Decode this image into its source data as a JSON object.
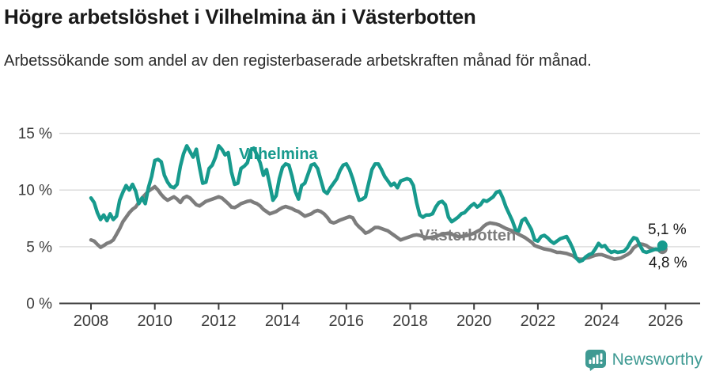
{
  "header": {
    "title": "Högre arbetslöshet i Vilhelmina än i Västerbotten",
    "subtitle": "Arbetssökande som andel av den registerbaserade arbetskraften månad för månad."
  },
  "colors": {
    "vilhelmina": "#179a8d",
    "vasterbotten": "#7d7d7d",
    "grid": "#d8d8d8",
    "axis": "#3c3c3c",
    "brand_teal": "#3f9a93"
  },
  "chart_data": {
    "type": "line",
    "title": "Högre arbetslöshet i Vilhelmina än i Västerbotten",
    "xlabel": "",
    "ylabel": "Arbetssökande som andel av den registerbaserade arbetskraften",
    "x_start": 2008.0,
    "x_step": 0.1,
    "xlim": [
      2007.0,
      2027.1
    ],
    "ylim": [
      0,
      15
    ],
    "grid": "horizontal",
    "x_ticks": [
      2008,
      2010,
      2012,
      2014,
      2016,
      2018,
      2020,
      2022,
      2024,
      2026
    ],
    "y_ticks": [
      {
        "value": 0,
        "label": "0 %"
      },
      {
        "value": 5,
        "label": "5 %"
      },
      {
        "value": 10,
        "label": "10 %"
      },
      {
        "value": 15,
        "label": "15 %"
      }
    ],
    "series": [
      {
        "name": "Västerbotten",
        "color": "#7d7d7d",
        "end_label": "4,8 %",
        "end_value": 4.8,
        "values": [
          5.6,
          5.5,
          5.2,
          4.95,
          5.1,
          5.3,
          5.4,
          5.6,
          6.1,
          6.6,
          7.2,
          7.6,
          8.0,
          8.3,
          8.5,
          8.9,
          9.3,
          9.6,
          9.9,
          10.1,
          10.3,
          10.0,
          9.6,
          9.3,
          9.1,
          9.25,
          9.4,
          9.2,
          8.9,
          9.3,
          9.45,
          9.3,
          9.0,
          8.7,
          8.6,
          8.8,
          9.0,
          9.1,
          9.2,
          9.3,
          9.4,
          9.3,
          9.05,
          8.8,
          8.5,
          8.45,
          8.6,
          8.8,
          8.9,
          9.0,
          9.05,
          8.9,
          8.8,
          8.6,
          8.3,
          8.1,
          7.9,
          8.0,
          8.1,
          8.3,
          8.45,
          8.55,
          8.45,
          8.35,
          8.2,
          8.1,
          7.9,
          7.7,
          7.8,
          7.9,
          8.1,
          8.2,
          8.1,
          7.9,
          7.6,
          7.2,
          7.1,
          7.2,
          7.35,
          7.45,
          7.55,
          7.65,
          7.55,
          7.05,
          6.75,
          6.5,
          6.2,
          6.3,
          6.5,
          6.7,
          6.7,
          6.6,
          6.5,
          6.4,
          6.2,
          6.0,
          5.8,
          5.6,
          5.7,
          5.8,
          5.9,
          6.0,
          6.05,
          6.0,
          5.9,
          5.8,
          5.8,
          5.85,
          5.9,
          6.0,
          6.1,
          6.15,
          6.2,
          6.1,
          6.0,
          5.9,
          5.9,
          5.95,
          6.0,
          6.1,
          6.2,
          6.35,
          6.5,
          6.8,
          7.0,
          7.1,
          7.05,
          7.0,
          6.9,
          6.75,
          6.6,
          6.5,
          6.4,
          6.25,
          6.1,
          5.95,
          5.8,
          5.6,
          5.4,
          5.1,
          5.0,
          4.9,
          4.8,
          4.75,
          4.7,
          4.6,
          4.5,
          4.5,
          4.45,
          4.4,
          4.3,
          4.2,
          4.0,
          3.9,
          3.9,
          4.0,
          4.05,
          4.15,
          4.25,
          4.3,
          4.3,
          4.2,
          4.1,
          4.0,
          3.9,
          3.95,
          4.0,
          4.15,
          4.3,
          4.5,
          4.9,
          5.1,
          5.25,
          5.2,
          5.1,
          4.9,
          4.8,
          4.75,
          4.75,
          4.8
        ]
      },
      {
        "name": "Vilhelmina",
        "color": "#179a8d",
        "end_label": "5,1 %",
        "end_value": 5.1,
        "values": [
          9.3,
          8.9,
          8.0,
          7.4,
          7.8,
          7.3,
          7.9,
          7.4,
          7.7,
          9.1,
          9.8,
          10.4,
          10.0,
          10.5,
          9.9,
          8.8,
          9.3,
          8.8,
          10.2,
          11.2,
          12.6,
          12.7,
          12.5,
          11.3,
          10.7,
          10.3,
          10.2,
          10.5,
          12.1,
          13.2,
          13.9,
          13.4,
          12.9,
          13.6,
          12.0,
          10.6,
          10.7,
          11.9,
          12.2,
          12.9,
          13.9,
          13.6,
          13.1,
          13.3,
          11.6,
          10.5,
          10.6,
          11.9,
          12.1,
          12.4,
          13.5,
          13.7,
          13.1,
          12.4,
          11.3,
          11.8,
          10.5,
          9.1,
          9.5,
          11.0,
          12.0,
          12.3,
          12.2,
          11.2,
          9.9,
          9.2,
          10.4,
          10.6,
          11.4,
          12.2,
          12.3,
          11.9,
          10.9,
          9.9,
          9.7,
          10.2,
          10.6,
          11.0,
          11.7,
          12.2,
          12.3,
          11.8,
          11.0,
          10.0,
          9.1,
          9.2,
          9.4,
          10.6,
          11.8,
          12.3,
          12.3,
          11.8,
          11.2,
          10.8,
          10.4,
          10.6,
          10.2,
          10.8,
          10.9,
          11.0,
          10.9,
          10.4,
          8.9,
          7.8,
          7.6,
          7.8,
          7.8,
          7.9,
          8.5,
          8.9,
          9.0,
          8.7,
          7.6,
          7.2,
          7.4,
          7.6,
          7.9,
          8.0,
          8.3,
          8.6,
          8.8,
          8.5,
          8.7,
          9.1,
          9.0,
          9.2,
          9.4,
          9.8,
          9.9,
          9.3,
          8.5,
          7.9,
          7.3,
          6.5,
          6.4,
          7.3,
          7.5,
          7.0,
          6.5,
          5.6,
          5.5,
          5.9,
          6.0,
          5.8,
          5.5,
          5.3,
          5.5,
          5.7,
          5.8,
          5.9,
          5.4,
          4.8,
          4.0,
          3.7,
          3.8,
          4.1,
          4.3,
          4.4,
          4.8,
          5.3,
          5.0,
          5.1,
          4.7,
          4.5,
          4.6,
          4.5,
          4.55,
          4.6,
          4.9,
          5.4,
          5.8,
          5.7,
          5.1,
          4.6,
          4.5,
          4.6,
          4.7,
          4.8,
          4.7,
          5.1
        ]
      }
    ],
    "legend_position": "inline-labels"
  },
  "footer": {
    "brand": "Newsworthy"
  }
}
